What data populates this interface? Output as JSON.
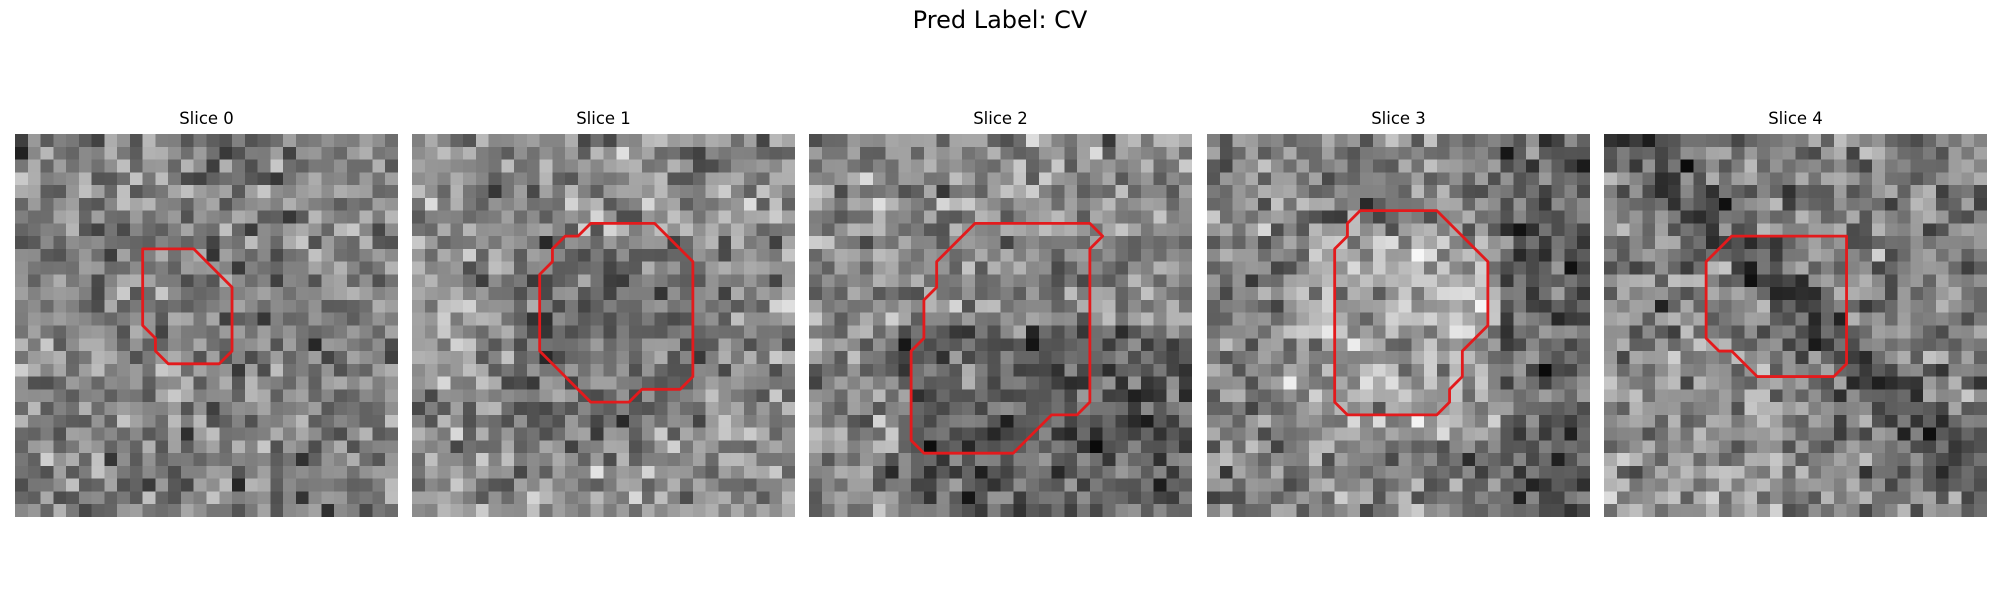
{
  "title": "Pred Label: CV",
  "contour_color": "#e31a1c",
  "grid_size": 30,
  "slices": [
    {
      "label": "Slice 0",
      "seed": 11,
      "pattern": "flat",
      "contour": [
        [
          10,
          9
        ],
        [
          14,
          9
        ],
        [
          17,
          12
        ],
        [
          17,
          17
        ],
        [
          16,
          18
        ],
        [
          12,
          18
        ],
        [
          11,
          17
        ],
        [
          11,
          16
        ],
        [
          10,
          15
        ],
        [
          10,
          11
        ]
      ]
    },
    {
      "label": "Slice 1",
      "seed": 23,
      "pattern": "light-center",
      "contour": [
        [
          14,
          7
        ],
        [
          19,
          7
        ],
        [
          22,
          10
        ],
        [
          22,
          19
        ],
        [
          21,
          20
        ],
        [
          18,
          20
        ],
        [
          17,
          21
        ],
        [
          14,
          21
        ],
        [
          12,
          19
        ],
        [
          10,
          17
        ],
        [
          10,
          11
        ],
        [
          11,
          10
        ],
        [
          11,
          9
        ],
        [
          12,
          8
        ],
        [
          13,
          8
        ]
      ]
    },
    {
      "label": "Slice 2",
      "seed": 37,
      "pattern": "dark-lower",
      "contour": [
        [
          13,
          7
        ],
        [
          22,
          7
        ],
        [
          23,
          8
        ],
        [
          22,
          9
        ],
        [
          22,
          21
        ],
        [
          21,
          22
        ],
        [
          19,
          22
        ],
        [
          16,
          25
        ],
        [
          9,
          25
        ],
        [
          8,
          24
        ],
        [
          8,
          17
        ],
        [
          9,
          16
        ],
        [
          9,
          13
        ],
        [
          10,
          12
        ],
        [
          10,
          10
        ]
      ]
    },
    {
      "label": "Slice 3",
      "seed": 41,
      "pattern": "light-blob",
      "contour": [
        [
          12,
          6
        ],
        [
          18,
          6
        ],
        [
          22,
          10
        ],
        [
          22,
          15
        ],
        [
          21,
          16
        ],
        [
          20,
          17
        ],
        [
          20,
          19
        ],
        [
          19,
          20
        ],
        [
          19,
          21
        ],
        [
          18,
          22
        ],
        [
          11,
          22
        ],
        [
          10,
          21
        ],
        [
          10,
          9
        ],
        [
          11,
          8
        ],
        [
          11,
          7
        ]
      ]
    },
    {
      "label": "Slice 4",
      "seed": 53,
      "pattern": "diagonal",
      "contour": [
        [
          10,
          8
        ],
        [
          19,
          8
        ],
        [
          19,
          18
        ],
        [
          18,
          19
        ],
        [
          12,
          19
        ],
        [
          10,
          17
        ],
        [
          9,
          17
        ],
        [
          8,
          16
        ],
        [
          8,
          10
        ]
      ]
    }
  ]
}
